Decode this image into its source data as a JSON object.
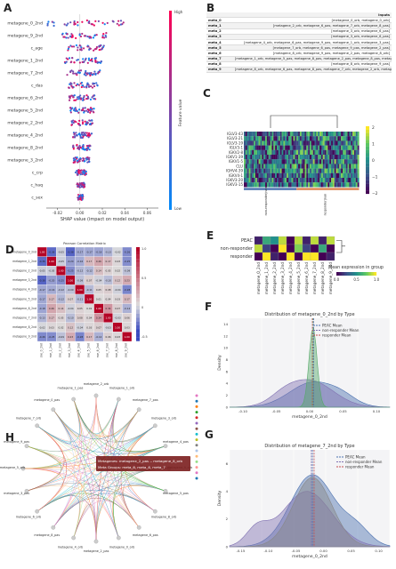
{
  "panels": {
    "A": "A",
    "B": "B",
    "C": "C",
    "D": "D",
    "E": "E",
    "F": "F",
    "G": "G",
    "H": "H"
  },
  "panel_a": {
    "features": [
      "metagene_0_2nd",
      "metagene_9_2nd",
      "c_age",
      "metagene_1_2nd",
      "metagene_7_2nd",
      "c_das",
      "metagene_6_2nd",
      "metagene_5_2nd",
      "metagene_2_2nd",
      "metagene_4_2nd",
      "metagene_8_2nd",
      "metagene_3_2nd",
      "c_crp",
      "c_haq",
      "c_sex"
    ],
    "x_ticks": [
      "-0.02",
      "0.00",
      "0.02",
      "0.04",
      "0.06"
    ],
    "xlabel": "SHAP value (impact on model output)",
    "colorbar_label": "Feature value",
    "high": "High",
    "low": "Low"
  },
  "panel_b": {
    "header": "Inputs",
    "rows": [
      {
        "k": "meta_0",
        "v": "[metagene_0_orb, metagene_0_orb]"
      },
      {
        "k": "meta_1",
        "v": "[metagene_2_orb, metagene_6_pas, metagene_7_orb, metagene_8_pas]"
      },
      {
        "k": "meta_2",
        "v": "[metagene_3_orb, metagene_6_pas]"
      },
      {
        "k": "meta_3",
        "v": "[metagene_3_orb, metagene_6_pas]"
      },
      {
        "k": "meta_4",
        "v": "[metagene_4_orb, metagene_6_pas, metagene_9_pas, metagene_1_orb, metagene_3_pas]"
      },
      {
        "k": "meta_5",
        "v": "[metagene_7_orb, metagene_6_pas, metagene_9_pas, metagene_2_pas]"
      },
      {
        "k": "meta_6",
        "v": "[metagene_8_orb, metagene_9_pas, metagene_2_pas, metagene_8_orb]"
      },
      {
        "k": "meta_7",
        "v": "[metagene_1_orb, metagene_5_pas, metagene_8_pas, metagene_2_pas, metagene_8_pas, metagene_3_pas]"
      },
      {
        "k": "meta_8",
        "v": "[metagene_8_orb, metagene_9_pas]"
      },
      {
        "k": "meta_9",
        "v": "[metagene_8_orb, metagene_6_pas, metagene_8_pas, metagene_7_orb, metagene_2_orb, metagene_9_orb]"
      }
    ]
  },
  "panel_c": {
    "row_labels": [
      "IGLV3-43",
      "IGLV3-21",
      "IGLV3-19",
      "IGLV3-1",
      "IGKV2-8",
      "IGKV1-39",
      "IGKV1-5",
      "CLU",
      "IGHV4-39",
      "IGKV4-1",
      "IGKV3-20",
      "IGKV3-15"
    ],
    "col_labels": [
      "non-responder|nan",
      "responder|nan"
    ],
    "xlabel": "batch2",
    "colorbar_ticks": [
      "2",
      "1",
      "0",
      "−1",
      "−2"
    ]
  },
  "panel_d": {
    "title": "Pearson Correlation Matrix",
    "labels": [
      "metagene_0_2nd",
      "metagene_1_2nd",
      "metagene_2_2nd",
      "metagene_3_2nd",
      "metagene_4_2nd",
      "metagene_5_2nd",
      "metagene_6_2nd",
      "metagene_7_2nd",
      "metagene_8_2nd",
      "metagene_9_2nd"
    ],
    "matrix": [
      [
        1.0,
        -0.36,
        -0.05,
        -0.38,
        -0.17,
        -0.17,
        -0.18,
        -0.13,
        -0.02,
        -0.26
      ],
      [
        -0.36,
        1.0,
        -0.05,
        -0.2,
        -0.16,
        0.17,
        0.26,
        0.17,
        0.03,
        -0.25
      ],
      [
        -0.05,
        -0.05,
        1.0,
        -0.25,
        -0.12,
        -0.12,
        0.14,
        0.05,
        0.02,
        -0.09
      ],
      [
        -0.38,
        -0.2,
        -0.25,
        1.0,
        -0.09,
        0.07,
        -0.04,
        -0.1,
        0.12,
        0.23
      ],
      [
        -0.17,
        -0.16,
        -0.12,
        -0.09,
        1.0,
        -0.11,
        0.05,
        0.08,
        -0.04,
        -0.28
      ],
      [
        -0.17,
        0.17,
        -0.12,
        0.07,
        -0.11,
        1.0,
        0.01,
        0.04,
        0.03,
        0.17
      ],
      [
        -0.18,
        0.26,
        0.14,
        -0.04,
        0.05,
        0.01,
        1.0,
        0.34,
        0.07,
        -0.14
      ],
      [
        -0.13,
        0.17,
        0.05,
        -0.1,
        0.08,
        0.04,
        0.34,
        1.0,
        -0.03,
        0.06
      ],
      [
        -0.02,
        0.03,
        0.02,
        0.12,
        -0.04,
        0.03,
        0.07,
        -0.03,
        1.0,
        0.03
      ],
      [
        -0.26,
        -0.25,
        -0.09,
        0.23,
        -0.28,
        0.17,
        -0.14,
        0.06,
        0.03,
        1.0
      ]
    ],
    "colorbar_ticks": [
      "1.0",
      "0.5",
      "0",
      "-0.5"
    ]
  },
  "panel_e": {
    "rows": [
      "PEAC",
      "non-responder",
      "responder"
    ],
    "cols": [
      "metagene_0_2nd",
      "metagene_1_2nd",
      "metagene_2_2nd",
      "metagene_3_2nd",
      "metagene_4_2nd",
      "metagene_5_2nd",
      "metagene_6_2nd",
      "metagene_7_2nd",
      "metagene_8_2nd",
      "metagene_9_2nd"
    ],
    "values": [
      [
        0.1,
        0.6,
        0.5,
        0.9,
        0.0,
        0.9,
        0.1,
        0.9,
        0.1,
        0.9
      ],
      [
        0.9,
        0.2,
        0.0,
        1.0,
        0.0,
        0.8,
        0.2,
        0.0,
        0.6,
        0.0
      ],
      [
        0.0,
        1.0,
        0.1,
        0.0,
        1.0,
        0.0,
        1.0,
        1.0,
        0.0,
        0.1
      ]
    ],
    "legend_title": "Mean expression in group",
    "legend_ticks": [
      "0.0",
      "0.5",
      "1.0"
    ]
  },
  "panel_f": {
    "title": "Distribution of metagene_0_2nd by Type",
    "xlabel": "metagene_0_2nd",
    "ylabel": "Density",
    "legend": [
      "PEAC Mean",
      "non-responder Mean",
      "responder Mean"
    ],
    "x_ticks": [
      "-0.10",
      "-0.05",
      "0.00",
      "0.05",
      "0.10"
    ],
    "y_ticks": [
      "0",
      "2",
      "4",
      "6",
      "8",
      "10",
      "12",
      "14"
    ]
  },
  "panel_g": {
    "title": "Distribution of metagene_7_2nd by Type",
    "xlabel": "metagene_0_2nd",
    "ylabel": "Density",
    "legend": [
      "PEAC Mean",
      "non-responder Mean",
      "responder Mean"
    ],
    "x_ticks": [
      "-0.15",
      "-0.10",
      "-0.05",
      "0.00",
      "0.05",
      "0.10"
    ],
    "y_ticks": [
      "0",
      "2",
      "4",
      "6"
    ]
  },
  "panel_h": {
    "tooltip_line1": "Metagenes: metagene_2_pas -- metagene_8_orb",
    "tooltip_line2": "Meta Groups: meta_6, meta_6, meta_7",
    "nodes": [
      "metagene_2_orb",
      "metagene_1_orb",
      "metagene_7_pas",
      "metagene_3_orb",
      "metagene_4_pas",
      "metagene_9_orb",
      "metagene_5_pas",
      "metagene_8_orb",
      "metagene_6_pas",
      "metagene_0_orb",
      "metagene_2_pas",
      "metagene_4_orb",
      "metagene_8_pas",
      "metagene_6_orb",
      "metagene_3_pas",
      "metagene_5_orb",
      "metagene_9_pas",
      "metagene_7_orb",
      "metagene_0_pas",
      "metagene_1_pas"
    ]
  },
  "colors": {
    "shap_high": "#ff0052",
    "shap_low": "#008bfb",
    "peac": "#4c72b0",
    "nonresp": "#8172b2",
    "resp": "#c44e52",
    "green_mean": "#55a868"
  }
}
